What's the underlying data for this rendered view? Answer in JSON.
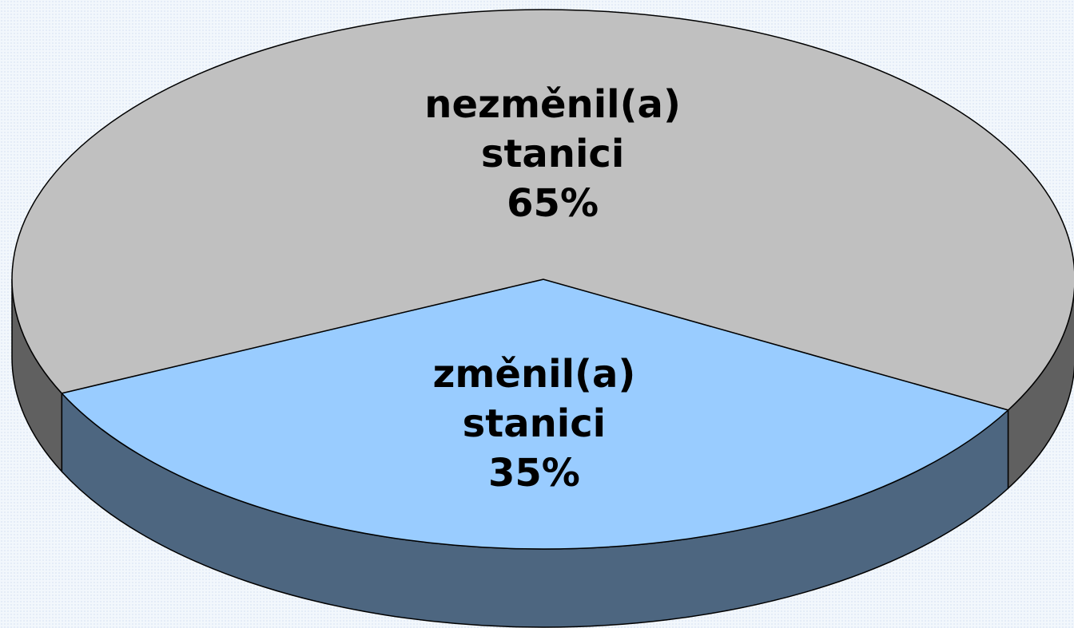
{
  "chart_data": {
    "type": "pie",
    "categories": [
      "změnil(a) stanici",
      "nezměnil(a) stanici"
    ],
    "values": [
      35,
      65
    ],
    "value_labels": [
      "35%",
      "65%"
    ],
    "colors": [
      "#99ccff",
      "#c0c0c0"
    ]
  }
}
